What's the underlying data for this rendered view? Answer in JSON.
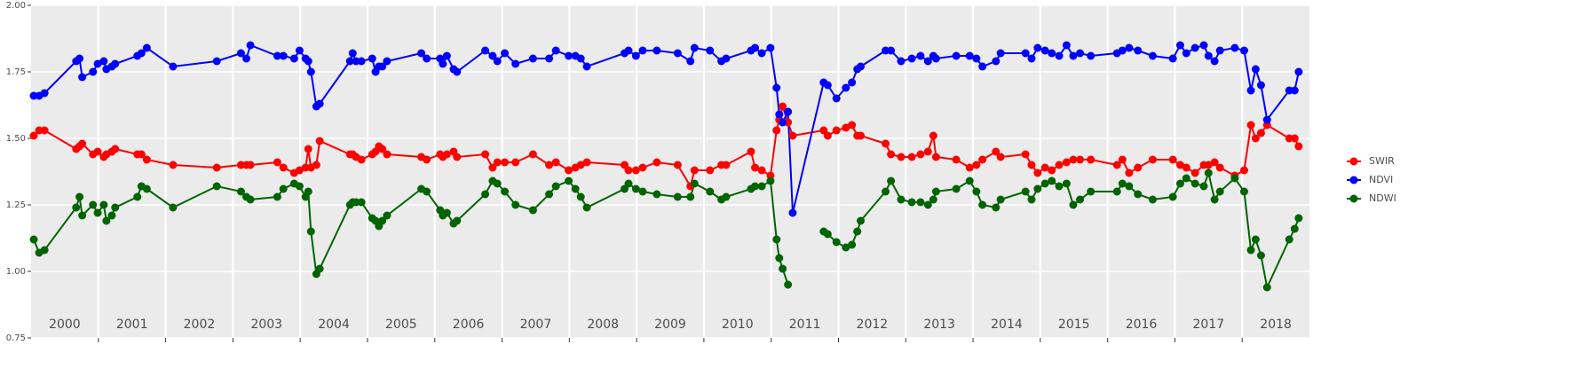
{
  "chart_data": {
    "type": "line",
    "x": [
      2000.04,
      2000.12,
      2000.2,
      2000.67,
      2000.72,
      2000.76,
      2000.92,
      2000.99,
      2001.08,
      2001.12,
      2001.2,
      2001.25,
      2001.58,
      2001.64,
      2001.72,
      2002.11,
      2002.76,
      2003.12,
      2003.2,
      2003.26,
      2003.66,
      2003.75,
      2003.91,
      2003.99,
      2004.08,
      2004.12,
      2004.16,
      2004.24,
      2004.29,
      2004.74,
      2004.78,
      2004.83,
      2004.91,
      2005.07,
      2005.12,
      2005.17,
      2005.22,
      2005.29,
      2005.8,
      2005.88,
      2006.08,
      2006.12,
      2006.18,
      2006.28,
      2006.33,
      2006.75,
      2006.86,
      2006.93,
      2007.04,
      2007.2,
      2007.46,
      2007.7,
      2007.8,
      2007.99,
      2008.09,
      2008.17,
      2008.26,
      2008.82,
      2008.88,
      2008.99,
      2009.09,
      2009.3,
      2009.61,
      2009.8,
      2009.86,
      2010.09,
      2010.26,
      2010.33,
      2010.7,
      2010.76,
      2010.86,
      2010.99,
      2011.08,
      2011.12,
      2011.17,
      2011.25,
      2011.32,
      2011.78,
      2011.84,
      2011.97,
      2012.11,
      2012.2,
      2012.28,
      2012.33,
      2012.7,
      2012.78,
      2012.93,
      2013.09,
      2013.22,
      2013.33,
      2013.41,
      2013.45,
      2013.75,
      2013.95,
      2014.05,
      2014.14,
      2014.34,
      2014.41,
      2014.78,
      2014.87,
      2014.96,
      2015.07,
      2015.17,
      2015.28,
      2015.39,
      2015.49,
      2015.59,
      2015.75,
      2016.14,
      2016.22,
      2016.32,
      2016.45,
      2016.67,
      2016.97,
      2017.08,
      2017.17,
      2017.3,
      2017.43,
      2017.5,
      2017.59,
      2017.67,
      2017.89,
      2018.03,
      2018.13,
      2018.2,
      2018.28,
      2018.37,
      2018.7,
      2018.78,
      2018.84
    ],
    "series": [
      {
        "name": "SWIR",
        "color": "#ff0000",
        "values": [
          1.51,
          1.53,
          1.53,
          1.46,
          1.47,
          1.48,
          1.44,
          1.45,
          1.43,
          1.44,
          1.45,
          1.46,
          1.44,
          1.44,
          1.42,
          1.4,
          1.39,
          1.4,
          1.4,
          1.4,
          1.41,
          1.39,
          1.37,
          1.38,
          1.39,
          1.46,
          1.39,
          1.4,
          1.49,
          1.44,
          1.44,
          1.43,
          1.42,
          1.44,
          1.45,
          1.47,
          1.46,
          1.44,
          1.43,
          1.42,
          1.44,
          1.43,
          1.44,
          1.45,
          1.43,
          1.44,
          1.39,
          1.41,
          1.41,
          1.41,
          1.44,
          1.4,
          1.41,
          1.38,
          1.39,
          1.4,
          1.41,
          1.4,
          1.38,
          1.38,
          1.39,
          1.41,
          1.4,
          1.32,
          1.38,
          1.38,
          1.4,
          1.4,
          1.45,
          1.39,
          1.38,
          1.36,
          1.53,
          1.57,
          1.62,
          1.56,
          1.51,
          1.53,
          1.51,
          1.53,
          1.54,
          1.55,
          1.51,
          1.51,
          1.48,
          1.44,
          1.43,
          1.43,
          1.44,
          1.45,
          1.51,
          1.43,
          1.42,
          1.39,
          1.4,
          1.42,
          1.45,
          1.43,
          1.44,
          1.4,
          1.37,
          1.39,
          1.38,
          1.4,
          1.41,
          1.42,
          1.42,
          1.42,
          1.4,
          1.42,
          1.37,
          1.39,
          1.42,
          1.42,
          1.4,
          1.39,
          1.37,
          1.4,
          1.4,
          1.41,
          1.39,
          1.36,
          1.38,
          1.55,
          1.5,
          1.52,
          1.55,
          1.5,
          1.5,
          1.47
        ]
      },
      {
        "name": "NDVI",
        "color": "#0000ff",
        "values": [
          1.66,
          1.66,
          1.67,
          1.79,
          1.8,
          1.73,
          1.75,
          1.78,
          1.79,
          1.76,
          1.77,
          1.78,
          1.81,
          1.82,
          1.84,
          1.77,
          1.79,
          1.82,
          1.8,
          1.85,
          1.81,
          1.81,
          1.8,
          1.83,
          1.8,
          1.79,
          1.75,
          1.62,
          1.63,
          1.79,
          1.82,
          1.79,
          1.79,
          1.8,
          1.75,
          1.77,
          1.77,
          1.79,
          1.82,
          1.8,
          1.8,
          1.78,
          1.81,
          1.76,
          1.75,
          1.83,
          1.81,
          1.79,
          1.82,
          1.78,
          1.8,
          1.8,
          1.83,
          1.81,
          1.81,
          1.8,
          1.77,
          1.82,
          1.83,
          1.81,
          1.83,
          1.83,
          1.82,
          1.79,
          1.84,
          1.83,
          1.79,
          1.8,
          1.83,
          1.84,
          1.82,
          1.84,
          1.69,
          1.59,
          1.56,
          1.6,
          1.22,
          1.71,
          1.7,
          1.65,
          1.69,
          1.71,
          1.76,
          1.77,
          1.83,
          1.83,
          1.79,
          1.8,
          1.81,
          1.79,
          1.81,
          1.8,
          1.81,
          1.81,
          1.8,
          1.77,
          1.79,
          1.82,
          1.82,
          1.8,
          1.84,
          1.83,
          1.82,
          1.81,
          1.85,
          1.81,
          1.82,
          1.81,
          1.82,
          1.83,
          1.84,
          1.83,
          1.81,
          1.8,
          1.85,
          1.82,
          1.84,
          1.85,
          1.81,
          1.79,
          1.83,
          1.84,
          1.83,
          1.68,
          1.76,
          1.7,
          1.57,
          1.68,
          1.68,
          1.75
        ]
      },
      {
        "name": "NDWI",
        "color": "#006400",
        "values": [
          1.12,
          1.07,
          1.08,
          1.24,
          1.28,
          1.21,
          1.25,
          1.22,
          1.25,
          1.19,
          1.21,
          1.24,
          1.28,
          1.32,
          1.31,
          1.24,
          1.32,
          1.3,
          1.28,
          1.27,
          1.28,
          1.31,
          1.33,
          1.32,
          1.28,
          1.3,
          1.15,
          0.99,
          1.01,
          1.25,
          1.26,
          1.26,
          1.26,
          1.2,
          1.19,
          1.17,
          1.19,
          1.21,
          1.31,
          1.3,
          1.23,
          1.21,
          1.22,
          1.18,
          1.19,
          1.29,
          1.34,
          1.33,
          1.3,
          1.25,
          1.23,
          1.29,
          1.32,
          1.34,
          1.31,
          1.28,
          1.24,
          1.31,
          1.33,
          1.31,
          1.3,
          1.29,
          1.28,
          1.28,
          1.33,
          1.3,
          1.27,
          1.28,
          1.31,
          1.32,
          1.32,
          1.34,
          1.12,
          1.05,
          1.01,
          0.95,
          null,
          1.15,
          1.14,
          1.11,
          1.09,
          1.1,
          1.15,
          1.19,
          1.3,
          1.34,
          1.27,
          1.26,
          1.26,
          1.25,
          1.27,
          1.3,
          1.31,
          1.34,
          1.3,
          1.25,
          1.24,
          1.27,
          1.3,
          1.27,
          1.31,
          1.33,
          1.34,
          1.32,
          1.33,
          1.25,
          1.27,
          1.3,
          1.3,
          1.33,
          1.32,
          1.29,
          1.27,
          1.28,
          1.33,
          1.35,
          1.33,
          1.32,
          1.37,
          1.27,
          1.3,
          1.35,
          1.3,
          1.08,
          1.12,
          1.06,
          0.94,
          1.12,
          1.16,
          1.2
        ]
      }
    ],
    "xlim": [
      2000,
      2019
    ],
    "xticks": [
      {
        "value": 2000.5,
        "label": "2000"
      },
      {
        "value": 2001.5,
        "label": "2001"
      },
      {
        "value": 2002.5,
        "label": "2002"
      },
      {
        "value": 2003.5,
        "label": "2003"
      },
      {
        "value": 2004.5,
        "label": "2004"
      },
      {
        "value": 2005.5,
        "label": "2005"
      },
      {
        "value": 2006.5,
        "label": "2006"
      },
      {
        "value": 2007.5,
        "label": "2007"
      },
      {
        "value": 2008.5,
        "label": "2008"
      },
      {
        "value": 2009.5,
        "label": "2009"
      },
      {
        "value": 2010.5,
        "label": "2010"
      },
      {
        "value": 2011.5,
        "label": "2011"
      },
      {
        "value": 2012.5,
        "label": "2012"
      },
      {
        "value": 2013.5,
        "label": "2013"
      },
      {
        "value": 2014.5,
        "label": "2014"
      },
      {
        "value": 2015.5,
        "label": "2015"
      },
      {
        "value": 2016.5,
        "label": "2016"
      },
      {
        "value": 2017.5,
        "label": "2017"
      },
      {
        "value": 2018.5,
        "label": "2018"
      }
    ],
    "xgrid": [
      2001,
      2002,
      2003,
      2004,
      2005,
      2006,
      2007,
      2008,
      2009,
      2010,
      2011,
      2012,
      2013,
      2014,
      2015,
      2016,
      2017,
      2018
    ],
    "ylim": [
      0.75,
      2.0
    ],
    "yticks": [
      0.75,
      {
        "value": 1.0,
        "label": "1.00"
      },
      1.25,
      {
        "value": 1.5,
        "label": "1.50"
      },
      1.75,
      {
        "value": 2.0,
        "label": "2.00"
      }
    ],
    "grid": true,
    "legend": "right"
  }
}
